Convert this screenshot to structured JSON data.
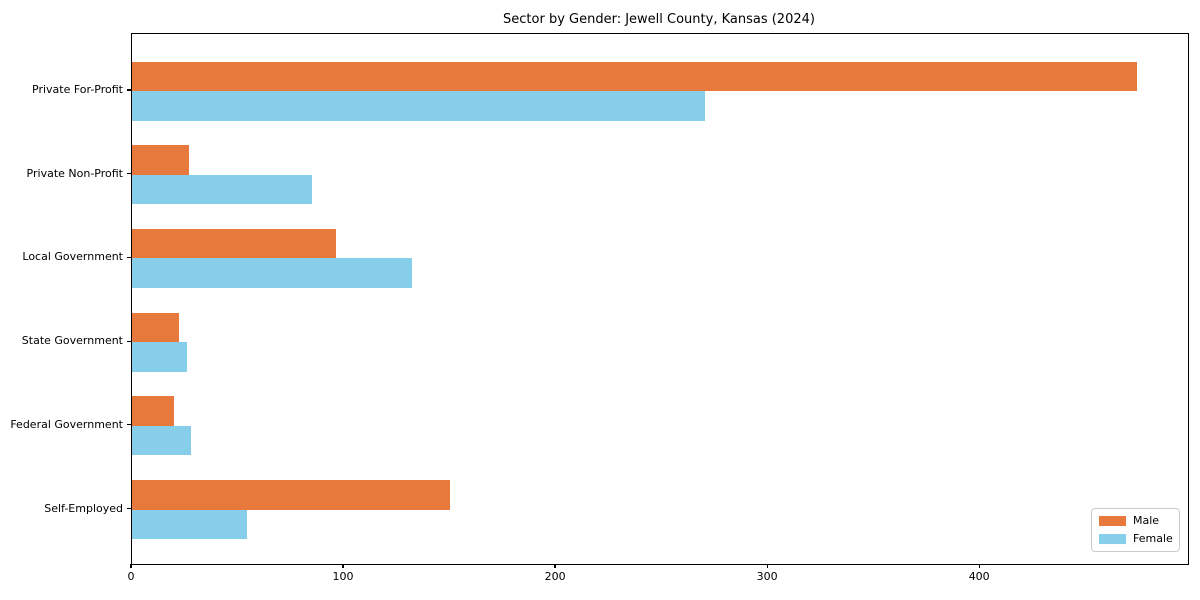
{
  "title": "Sector by Gender: Jewell County, Kansas (2024)",
  "legend": {
    "position": "lower right",
    "entries": [
      {
        "label": "Male",
        "color": "#e8793d"
      },
      {
        "label": "Female",
        "color": "#87ceeb"
      }
    ]
  },
  "chart_data": {
    "type": "bar",
    "orientation": "horizontal",
    "title": "Sector by Gender: Jewell County, Kansas (2024)",
    "categories": [
      "Private For-Profit",
      "Private Non-Profit",
      "Local Government",
      "State Government",
      "Federal Government",
      "Self-Employed"
    ],
    "series": [
      {
        "name": "Male",
        "color": "#e8793d",
        "values": [
          474,
          27,
          96,
          22,
          20,
          150
        ]
      },
      {
        "name": "Female",
        "color": "#87ceeb",
        "values": [
          270,
          85,
          132,
          26,
          28,
          54
        ]
      }
    ],
    "xlabel": "",
    "ylabel": "",
    "xlim": [
      0,
      498
    ],
    "xticks": [
      0,
      100,
      200,
      300,
      400
    ],
    "grid": false,
    "legend_position": "lower right"
  }
}
